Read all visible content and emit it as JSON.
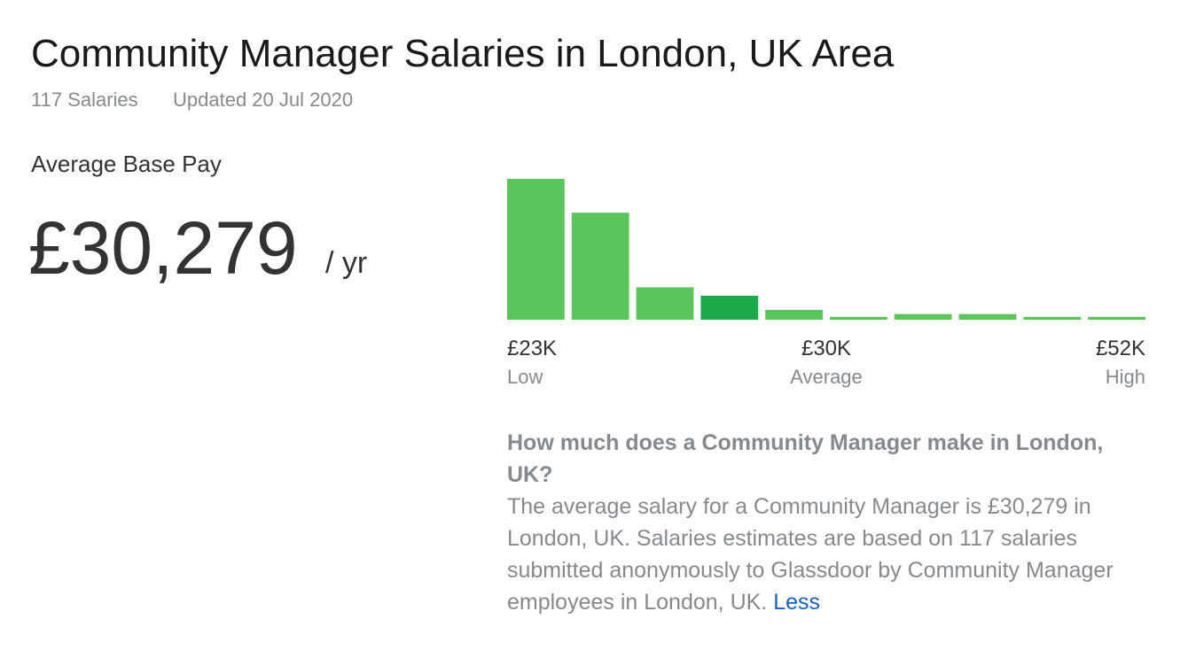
{
  "header": {
    "title": "Community Manager Salaries in London, UK Area",
    "salary_count": "117 Salaries",
    "updated": "Updated 20 Jul 2020"
  },
  "pay": {
    "label": "Average Base Pay",
    "amount": "£30,279",
    "unit": "/ yr"
  },
  "chart_data": {
    "type": "bar",
    "values": [
      100,
      76,
      23,
      17,
      7,
      2,
      4,
      4,
      2,
      2
    ],
    "colors": [
      "#5bc45b",
      "#5bc45b",
      "#5bc45b",
      "#1aaa4b",
      "#5bc45b",
      "#5bc45b",
      "#5bc45b",
      "#5bc45b",
      "#5bc45b",
      "#5bc45b"
    ],
    "ylim": [
      0,
      100
    ],
    "x_labels": [
      {
        "value": "£23K",
        "label": "Low"
      },
      {
        "value": "£30K",
        "label": "Average"
      },
      {
        "value": "£52K",
        "label": "High"
      }
    ]
  },
  "description": {
    "heading": "How much does a Community Manager make in London, UK?",
    "text": "The average salary for a Community Manager is £30,279 in London, UK. Salaries estimates are based on 117 salaries submitted anonymously to Glassdoor by Community Manager employees in London, UK.",
    "link": "Less"
  }
}
